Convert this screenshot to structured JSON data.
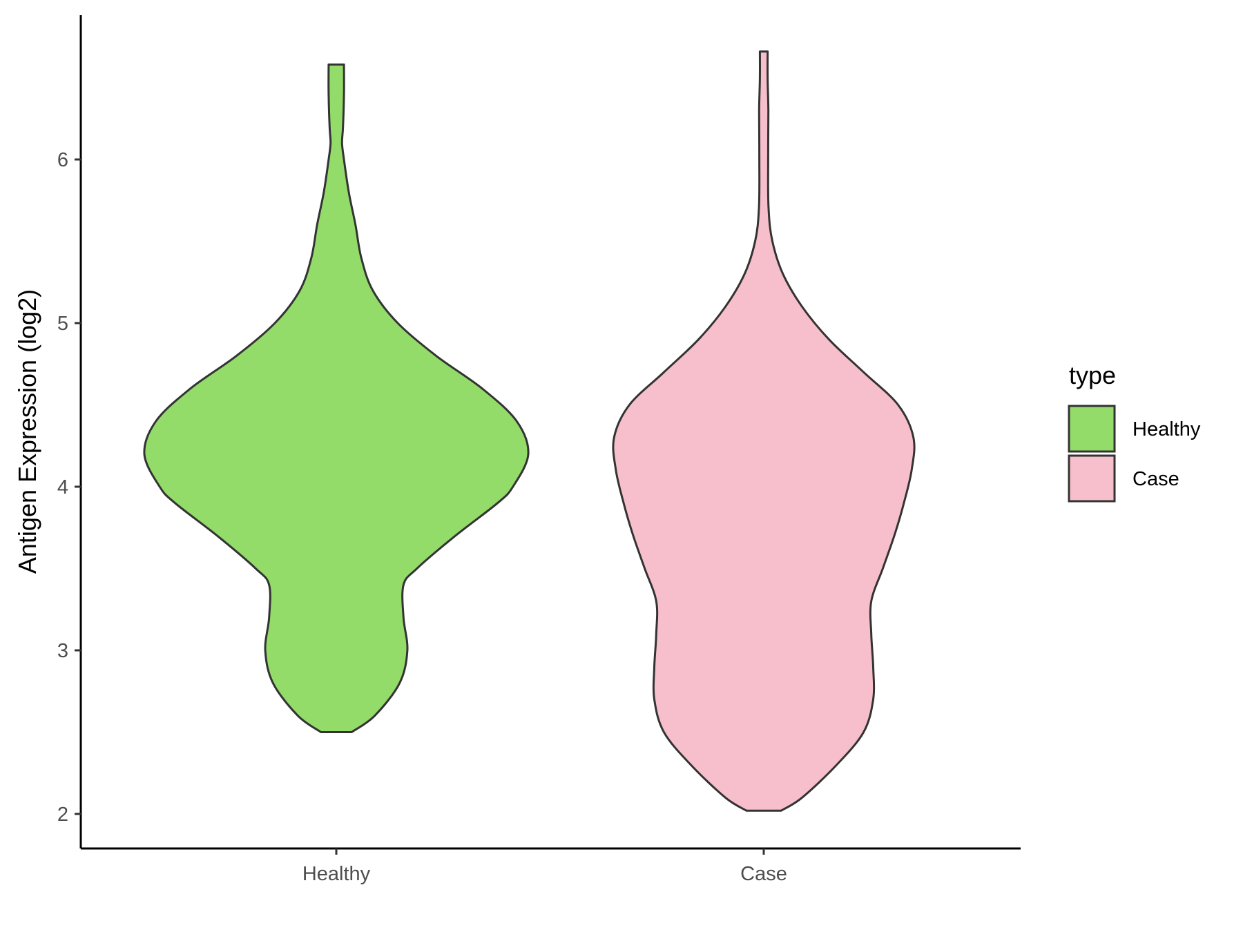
{
  "chart_data": {
    "type": "violin",
    "title": "",
    "xlabel": "",
    "ylabel": "Antigen Expression (log2)",
    "ylim": [
      1.95,
      6.75
    ],
    "yticks": [
      2,
      3,
      4,
      5,
      6
    ],
    "categories": [
      "Healthy",
      "Case"
    ],
    "grid": false,
    "legend": {
      "title": "type",
      "position": "right",
      "entries": [
        {
          "label": "Healthy",
          "color": "#93dc6a"
        },
        {
          "label": "Case",
          "color": "#f7bfcb"
        }
      ]
    },
    "series": [
      {
        "name": "Healthy",
        "color": "#93dc6a",
        "min": 2.5,
        "max": 6.58,
        "density_profile": [
          [
            2.5,
            0.08
          ],
          [
            2.6,
            0.2
          ],
          [
            2.8,
            0.33
          ],
          [
            3.0,
            0.37
          ],
          [
            3.2,
            0.35
          ],
          [
            3.4,
            0.35
          ],
          [
            3.5,
            0.42
          ],
          [
            3.7,
            0.62
          ],
          [
            3.9,
            0.84
          ],
          [
            4.0,
            0.92
          ],
          [
            4.2,
            1.0
          ],
          [
            4.4,
            0.94
          ],
          [
            4.6,
            0.76
          ],
          [
            4.8,
            0.52
          ],
          [
            5.0,
            0.32
          ],
          [
            5.2,
            0.19
          ],
          [
            5.4,
            0.13
          ],
          [
            5.6,
            0.1
          ],
          [
            5.8,
            0.065
          ],
          [
            6.0,
            0.04
          ],
          [
            6.1,
            0.03
          ],
          [
            6.2,
            0.035
          ],
          [
            6.4,
            0.04
          ],
          [
            6.58,
            0.04
          ]
        ]
      },
      {
        "name": "Case",
        "color": "#f7bfcb",
        "min": 2.02,
        "max": 6.66,
        "density_profile": [
          [
            2.02,
            0.09
          ],
          [
            2.1,
            0.2
          ],
          [
            2.3,
            0.38
          ],
          [
            2.5,
            0.52
          ],
          [
            2.7,
            0.57
          ],
          [
            2.9,
            0.57
          ],
          [
            3.1,
            0.56
          ],
          [
            3.3,
            0.56
          ],
          [
            3.5,
            0.62
          ],
          [
            3.7,
            0.68
          ],
          [
            3.9,
            0.73
          ],
          [
            4.1,
            0.77
          ],
          [
            4.3,
            0.78
          ],
          [
            4.5,
            0.7
          ],
          [
            4.7,
            0.52
          ],
          [
            4.9,
            0.34
          ],
          [
            5.1,
            0.2
          ],
          [
            5.3,
            0.1
          ],
          [
            5.5,
            0.045
          ],
          [
            5.7,
            0.025
          ],
          [
            6.0,
            0.023
          ],
          [
            6.3,
            0.024
          ],
          [
            6.5,
            0.02
          ],
          [
            6.66,
            0.02
          ]
        ]
      }
    ]
  }
}
